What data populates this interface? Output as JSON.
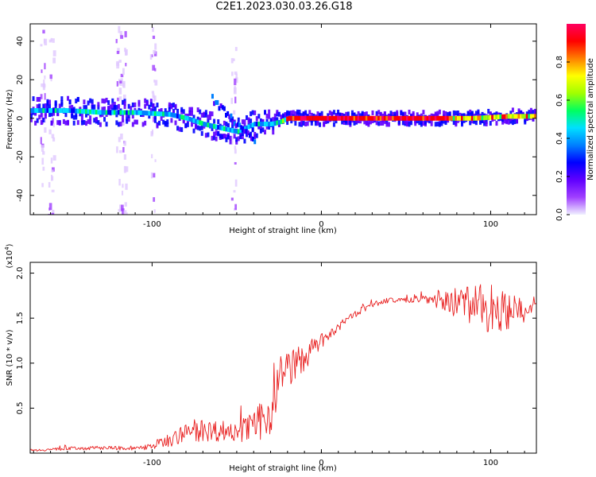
{
  "title": "C2E1.2023.030.03.26.G18",
  "chart_data": [
    {
      "type": "heatmap",
      "xlabel": "Height of straight line (km)",
      "ylabel": "Frequency (Hz)",
      "xlim": [
        -172,
        127
      ],
      "ylim": [
        -50,
        49
      ],
      "x_ticks": [
        -100,
        0,
        100
      ],
      "y_ticks": [
        -40,
        -20,
        0,
        20,
        40
      ],
      "colorbar": {
        "label": "Normalized spectral amplitude",
        "range": [
          0,
          1
        ],
        "ticks": [
          0.0,
          0.2,
          0.4,
          0.6,
          0.8
        ],
        "colors": [
          "#f0f0ff",
          "#a040ff",
          "#6000ff",
          "#0000ff",
          "#0080ff",
          "#00e0ff",
          "#00ff60",
          "#a0ff00",
          "#ffff00",
          "#ff8000",
          "#ff0000",
          "#ff0060"
        ]
      },
      "ridge": {
        "x": [
          -170,
          -150,
          -130,
          -110,
          -90,
          -80,
          -70,
          -60,
          -50,
          -40,
          -30,
          -25,
          -20,
          -10,
          0,
          10,
          30,
          60,
          90,
          110,
          127
        ],
        "frequency": [
          4,
          4,
          3,
          3,
          2,
          0,
          -3,
          -5,
          -7,
          -3,
          -3,
          -2,
          0,
          0,
          0,
          0,
          0,
          0,
          0,
          1,
          1
        ]
      }
    },
    {
      "type": "line",
      "xlabel": "Height of straight line (km)",
      "ylabel": "SNR (10 * v/v)",
      "y_multiplier": "(x10",
      "y_multiplier_exp": "4",
      "y_multiplier_close": ")",
      "xlim": [
        -172,
        127
      ],
      "ylim": [
        0.0,
        2.12
      ],
      "x_ticks": [
        -100,
        0,
        100
      ],
      "y_ticks": [
        0.5,
        1.0,
        1.5,
        2.0
      ],
      "color": "#e82020",
      "series": [
        {
          "x": [
            -172,
            -150,
            -130,
            -110,
            -100,
            -90,
            -80,
            -70,
            -60,
            -50,
            -40,
            -35,
            -30,
            -27,
            -25,
            -20,
            -15,
            -10,
            -5,
            0,
            5,
            10,
            15,
            20,
            25,
            30,
            40,
            50,
            60,
            70,
            80,
            90,
            100,
            110,
            120,
            127
          ],
          "y": [
            0.03,
            0.05,
            0.06,
            0.05,
            0.08,
            0.15,
            0.22,
            0.25,
            0.25,
            0.25,
            0.27,
            0.38,
            0.45,
            0.65,
            0.9,
            0.93,
            1.0,
            1.05,
            1.15,
            1.25,
            1.3,
            1.4,
            1.47,
            1.55,
            1.6,
            1.65,
            1.7,
            1.7,
            1.72,
            1.7,
            1.68,
            1.65,
            1.6,
            1.58,
            1.55,
            1.55
          ],
          "noise": [
            0.01,
            0.02,
            0.02,
            0.02,
            0.04,
            0.08,
            0.1,
            0.12,
            0.12,
            0.12,
            0.18,
            0.22,
            0.25,
            0.3,
            0.2,
            0.2,
            0.18,
            0.15,
            0.1,
            0.08,
            0.06,
            0.05,
            0.05,
            0.04,
            0.04,
            0.03,
            0.03,
            0.03,
            0.05,
            0.1,
            0.18,
            0.22,
            0.28,
            0.2,
            0.15,
            0.12
          ]
        }
      ]
    }
  ]
}
